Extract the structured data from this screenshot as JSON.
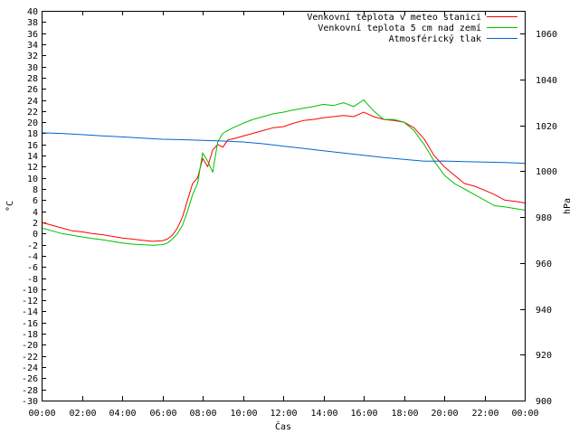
{
  "chart_data": {
    "type": "line",
    "xlabel": "Čas",
    "ylabel_left": "°C",
    "ylabel_right": "hPa",
    "x_ticks": [
      "00:00",
      "02:00",
      "04:00",
      "06:00",
      "08:00",
      "10:00",
      "12:00",
      "14:00",
      "16:00",
      "18:00",
      "20:00",
      "22:00",
      "00:00"
    ],
    "x_range_hours": [
      0,
      24
    ],
    "y_left_range": [
      -30,
      40
    ],
    "y_left_step": 2,
    "y_right_range": [
      900,
      1070
    ],
    "y_right_ticks": [
      900,
      920,
      940,
      960,
      980,
      1000,
      1020,
      1040,
      1060
    ],
    "legend_position": "top-right",
    "series": [
      {
        "name": "Venkovní teplota v meteo stanici",
        "color": "#ff0000",
        "axis": "left",
        "x": [
          0,
          0.5,
          1,
          1.5,
          2,
          2.5,
          3,
          3.5,
          4,
          4.5,
          5,
          5.5,
          6,
          6.25,
          6.5,
          6.75,
          7,
          7.25,
          7.5,
          7.75,
          8,
          8.25,
          8.5,
          8.75,
          9,
          9.25,
          9.5,
          10,
          10.5,
          11,
          11.5,
          12,
          12.5,
          13,
          13.5,
          14,
          14.5,
          15,
          15.5,
          16,
          16.5,
          17,
          17.5,
          18,
          18.5,
          19,
          19.5,
          20,
          20.5,
          21,
          21.5,
          22,
          22.5,
          23,
          23.5,
          24
        ],
        "y": [
          2.0,
          1.5,
          1.0,
          0.5,
          0.3,
          0.0,
          -0.2,
          -0.5,
          -0.8,
          -1.0,
          -1.2,
          -1.4,
          -1.3,
          -1.0,
          -0.3,
          1.0,
          3.0,
          6.0,
          9.0,
          10.0,
          13.5,
          12.0,
          15.0,
          16.0,
          15.5,
          16.8,
          17.0,
          17.5,
          18.0,
          18.5,
          19.0,
          19.2,
          19.8,
          20.3,
          20.5,
          20.8,
          21.0,
          21.2,
          21.0,
          21.8,
          21.0,
          20.5,
          20.3,
          20.0,
          19.0,
          17.0,
          14.0,
          12.0,
          10.5,
          9.0,
          8.5,
          7.8,
          7.0,
          6.0,
          5.8,
          5.5
        ]
      },
      {
        "name": "Venkovní teplota 5 cm nad zemí",
        "color": "#00c000",
        "axis": "left",
        "x": [
          0,
          0.5,
          1,
          1.5,
          2,
          2.5,
          3,
          3.5,
          4,
          4.5,
          5,
          5.5,
          6,
          6.25,
          6.5,
          6.75,
          7,
          7.25,
          7.5,
          7.75,
          8,
          8.25,
          8.5,
          8.75,
          9,
          9.25,
          9.5,
          10,
          10.5,
          11,
          11.5,
          12,
          12.5,
          13,
          13.5,
          14,
          14.5,
          15,
          15.5,
          16,
          16.5,
          17,
          17.5,
          18,
          18.5,
          19,
          19.5,
          20,
          20.5,
          21,
          21.5,
          22,
          22.5,
          23,
          23.5,
          24
        ],
        "y": [
          1.0,
          0.5,
          0.0,
          -0.3,
          -0.6,
          -0.9,
          -1.1,
          -1.4,
          -1.7,
          -1.9,
          -2.0,
          -2.1,
          -2.0,
          -1.7,
          -1.0,
          0.0,
          1.5,
          4.0,
          7.0,
          9.0,
          14.5,
          13.0,
          11.0,
          16.5,
          18.0,
          18.5,
          19.0,
          19.8,
          20.5,
          21.0,
          21.5,
          21.8,
          22.2,
          22.5,
          22.8,
          23.2,
          23.0,
          23.5,
          22.8,
          24.0,
          22.0,
          20.5,
          20.5,
          20.0,
          18.5,
          16.0,
          13.0,
          10.5,
          9.0,
          8.0,
          7.0,
          6.0,
          5.0,
          4.8,
          4.5,
          4.2
        ]
      },
      {
        "name": "Atmosférický tlak",
        "color": "#0066cc",
        "axis": "right",
        "x": [
          0,
          1,
          2,
          3,
          4,
          5,
          6,
          7,
          8,
          9,
          10,
          11,
          12,
          13,
          14,
          15,
          16,
          17,
          18,
          19,
          20,
          21,
          22,
          23,
          24
        ],
        "y": [
          1016.8,
          1016.5,
          1016.0,
          1015.5,
          1015.0,
          1014.5,
          1014.0,
          1013.8,
          1013.5,
          1013.2,
          1012.8,
          1012.0,
          1011.0,
          1010.0,
          1009.0,
          1008.0,
          1007.0,
          1006.0,
          1005.2,
          1004.4,
          1004.5,
          1004.2,
          1004.0,
          1003.8,
          1003.5
        ]
      }
    ]
  }
}
